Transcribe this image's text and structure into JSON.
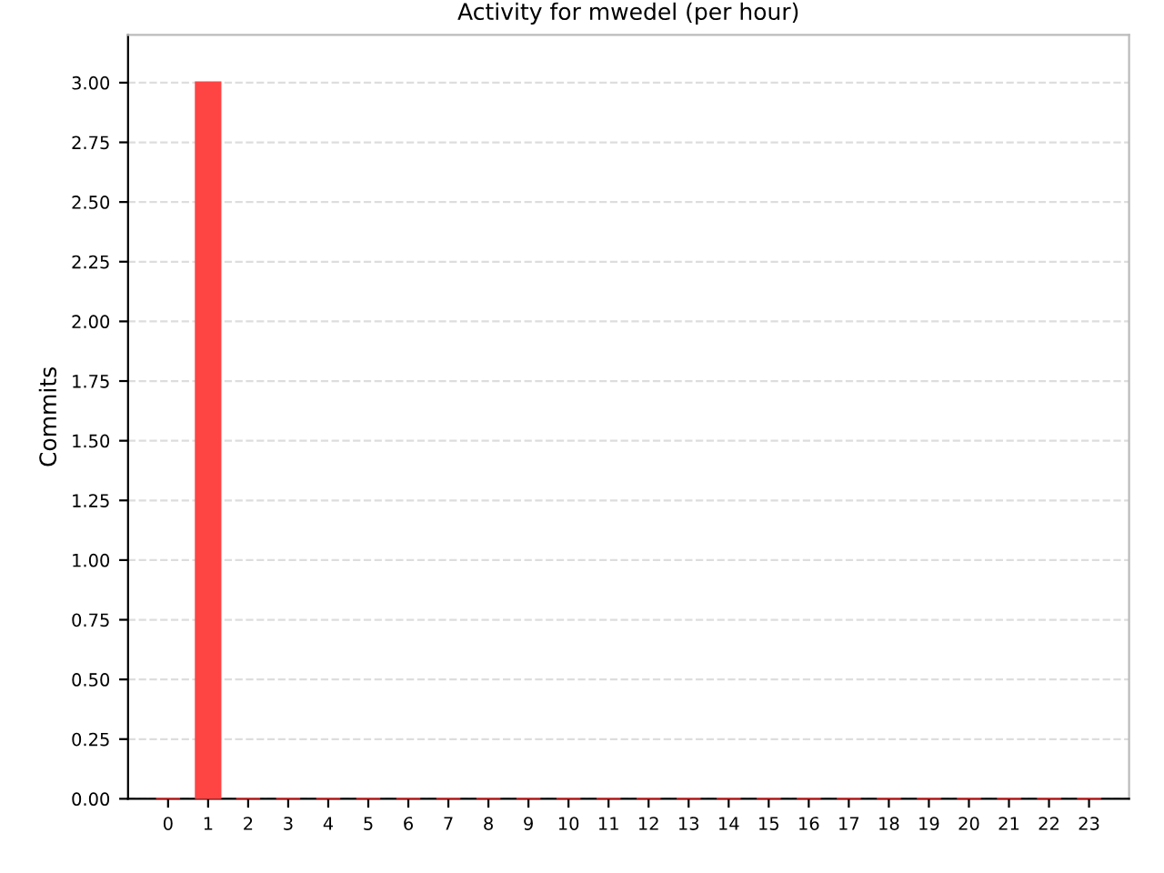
{
  "chart_data": {
    "type": "bar",
    "title": "Activity for mwedel (per hour)",
    "ylabel": "Commits",
    "categories": [
      "0",
      "1",
      "2",
      "3",
      "4",
      "5",
      "6",
      "7",
      "8",
      "9",
      "10",
      "11",
      "12",
      "13",
      "14",
      "15",
      "16",
      "17",
      "18",
      "19",
      "20",
      "21",
      "22",
      "23"
    ],
    "values": [
      0,
      3,
      0,
      0,
      0,
      0,
      0,
      0,
      0,
      0,
      0,
      0,
      0,
      0,
      0,
      0,
      0,
      0,
      0,
      0,
      0,
      0,
      0,
      0
    ],
    "color": "#ff4444",
    "ylim": [
      0,
      3.2
    ],
    "yticks": [
      {
        "value": 0,
        "label": "0.00"
      },
      {
        "value": 0.25,
        "label": "0.25"
      },
      {
        "value": 0.5,
        "label": "0.50"
      },
      {
        "value": 0.75,
        "label": "0.75"
      },
      {
        "value": 1,
        "label": "1.00"
      },
      {
        "value": 1.25,
        "label": "1.25"
      },
      {
        "value": 1.5,
        "label": "1.50"
      },
      {
        "value": 1.75,
        "label": "1.75"
      },
      {
        "value": 2,
        "label": "2.00"
      },
      {
        "value": 2.25,
        "label": "2.25"
      },
      {
        "value": 2.5,
        "label": "2.50"
      },
      {
        "value": 2.75,
        "label": "2.75"
      },
      {
        "value": 3,
        "label": "3.00"
      }
    ],
    "grid": "y",
    "legend": false
  }
}
